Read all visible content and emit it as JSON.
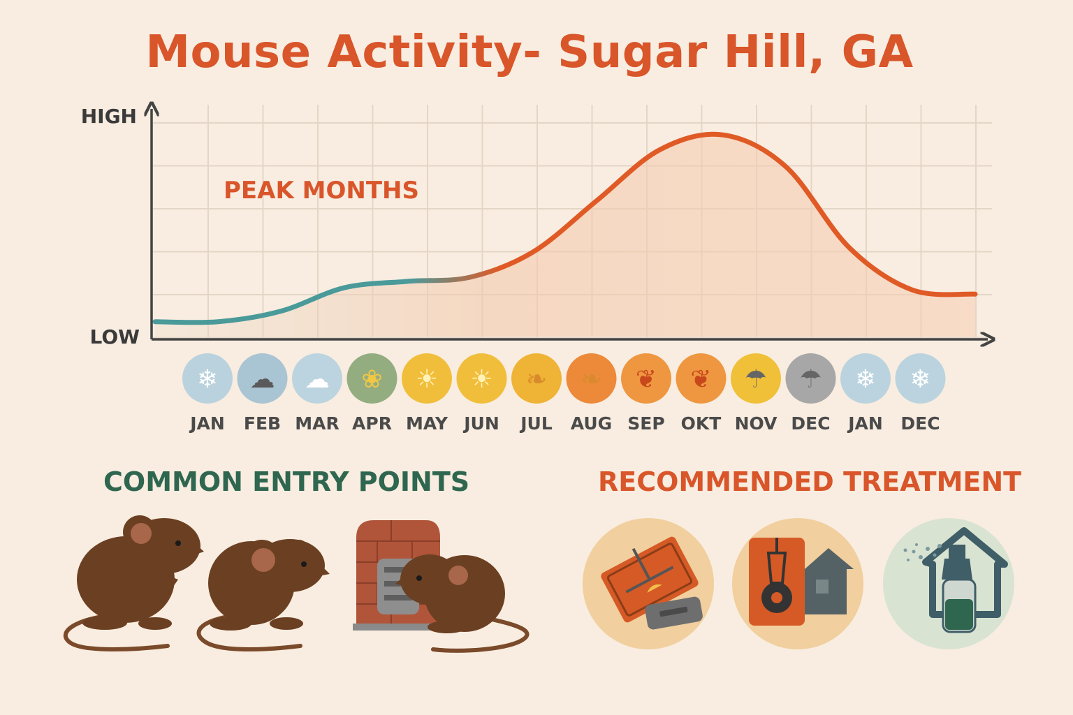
{
  "title": "Mouse Activity- Sugar Hill, GA",
  "chart_data": {
    "type": "area",
    "title": "Mouse Activity- Sugar Hill, GA",
    "y_axis_labels": {
      "high": "HIGH",
      "low": "LOW"
    },
    "ylim": [
      0,
      100
    ],
    "grid": true,
    "annotation": "PEAK MONTHS",
    "categories": [
      "JAN",
      "FEB",
      "MAR",
      "APR",
      "MAY",
      "JUN",
      "JUL",
      "AUG",
      "SEP",
      "OKT",
      "NOV",
      "DEC",
      "JAN",
      "DEC"
    ],
    "values": [
      7,
      7,
      12,
      23,
      26,
      28,
      40,
      64,
      88,
      95,
      80,
      42,
      22,
      20
    ],
    "line_color_low": "#4a9a9a",
    "line_color_high": "#e05a26",
    "month_icons": [
      {
        "icon": "snowflake-icon",
        "color": "#b9d2de"
      },
      {
        "icon": "cloud-icon",
        "color": "#a9c4d2"
      },
      {
        "icon": "snow-cloud-icon",
        "color": "#bcd4df"
      },
      {
        "icon": "flower-icon",
        "color": "#94ad80"
      },
      {
        "icon": "sun-icon",
        "color": "#f1be3c"
      },
      {
        "icon": "sun-icon",
        "color": "#f1be3c"
      },
      {
        "icon": "leaf-icon",
        "color": "#efb335"
      },
      {
        "icon": "leaf-icon",
        "color": "#ec8a3a"
      },
      {
        "icon": "maple-leaf-icon",
        "color": "#ee9740"
      },
      {
        "icon": "maple-leaf-icon",
        "color": "#ee9740"
      },
      {
        "icon": "rain-cloud-icon",
        "color": "#f1c039"
      },
      {
        "icon": "rain-cloud-icon",
        "color": "#a7a7a7"
      },
      {
        "icon": "snowflake-icon",
        "color": "#bad3df"
      },
      {
        "icon": "snowflake-icon",
        "color": "#bad3df"
      }
    ]
  },
  "sections": {
    "entry_points": {
      "heading": "COMMON ENTRY POINTS"
    },
    "treatment": {
      "heading": "RECOMMENDED TREATMENT"
    }
  },
  "illustrations": {
    "entry_points": [
      "mouse-icon",
      "mouse-icon",
      "brick-vent-mouse-icon"
    ],
    "treatment": [
      "snap-trap-icon",
      "bait-station-icon",
      "spray-bottle-house-icon"
    ]
  }
}
